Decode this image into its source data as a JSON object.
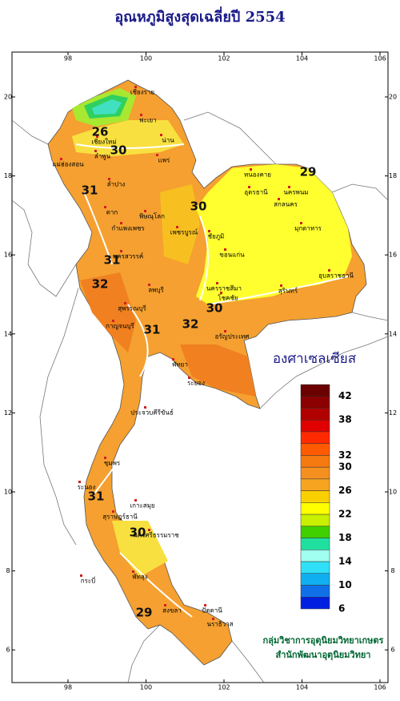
{
  "title": "อุณหภูมิสูงสุดเฉลี่ยปี 2554",
  "map": {
    "lon_ticks": [
      98,
      100,
      102,
      104,
      106
    ],
    "lat_ticks": [
      6,
      8,
      10,
      12,
      14,
      16,
      18,
      20
    ],
    "contour_labels": [
      26,
      30,
      31,
      30,
      31,
      32,
      30,
      31,
      32,
      31,
      30,
      29,
      29
    ],
    "places": [
      "เชียงราย",
      "เชียงใหม่",
      "พะเยา",
      "น่าน",
      "ลำพูน",
      "ลำปาง",
      "แพร่",
      "แม่ฮ่องสอน",
      "ตาก",
      "พิษณุโลก",
      "กำแพงเพชร",
      "เพชรบูรณ์",
      "นครสวรรค์",
      "ลพบุรี",
      "ชัยภูมิ",
      "นครราชสีมา",
      "ขอนแก่น",
      "หนองคาย",
      "อุดรธานี",
      "สกลนคร",
      "นครพนม",
      "มุกดาหาร",
      "อุบลราชธานี",
      "สุรินทร์",
      "โชคชัย",
      "กาญจนบุรี",
      "สุพรรณบุรี",
      "อรัญประเทศ",
      "พัทยา",
      "ระยอง",
      "ประจวบคีรีขันธ์",
      "ชุมพร",
      "ระนอง",
      "เกาะสมุย",
      "สุราษฎร์ธานี",
      "นครศรีธรรมราช",
      "กระบี่",
      "พัทลุง",
      "สงขลา",
      "ปัตตานี",
      "นราธิวาส"
    ]
  },
  "legend": {
    "title": "องศาเซลเซียส",
    "labels": [
      42,
      38,
      32,
      30,
      26,
      22,
      18,
      14,
      10,
      6
    ],
    "range": [
      6,
      44
    ],
    "colors": [
      "#6b0000",
      "#8b0000",
      "#b00000",
      "#e00000",
      "#ff2a00",
      "#ff5a00",
      "#f57a10",
      "#f59020",
      "#f7a520",
      "#fbd000",
      "#ffff00",
      "#c8f000",
      "#40d000",
      "#20e0a0",
      "#a0fff0",
      "#30e0f8",
      "#10b0f0",
      "#1070e8",
      "#0020e0"
    ]
  },
  "credits": [
    "กลุ่มวิชาการอุตุนิยมวิทยาเกษตร",
    "สำนักพัฒนาอุตุนิยมวิทยา"
  ]
}
